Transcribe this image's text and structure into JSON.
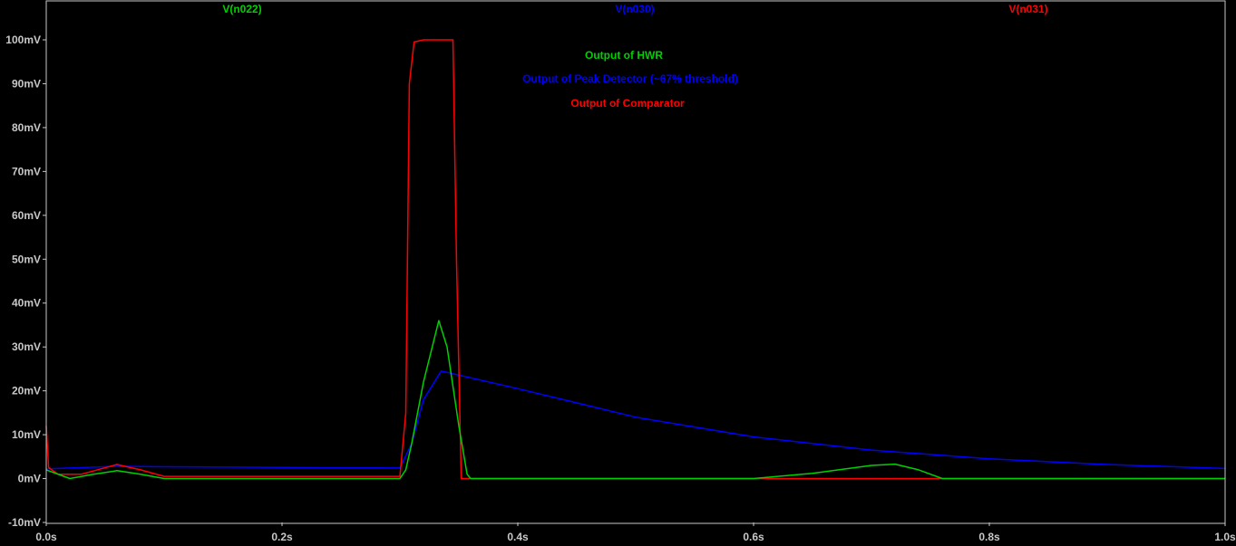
{
  "chart_data": {
    "type": "line",
    "title": "",
    "xlabel": "",
    "ylabel": "",
    "xlim": [
      0.0,
      1.0
    ],
    "ylim": [
      -10,
      100
    ],
    "x_unit": "s",
    "y_unit": "mV",
    "grid": false,
    "x_ticks": [
      "0.0s",
      "0.2s",
      "0.4s",
      "0.6s",
      "0.8s",
      "1.0s"
    ],
    "y_ticks": [
      "100mV",
      "90mV",
      "80mV",
      "70mV",
      "60mV",
      "50mV",
      "40mV",
      "30mV",
      "20mV",
      "10mV",
      "0mV",
      "-10mV"
    ],
    "series": [
      {
        "name": "V(n022)",
        "color": "#00d000",
        "x": [
          0.0,
          0.02,
          0.04,
          0.06,
          0.08,
          0.1,
          0.3,
          0.305,
          0.31,
          0.32,
          0.333,
          0.34,
          0.35,
          0.357,
          0.36,
          0.6,
          0.65,
          0.7,
          0.72,
          0.74,
          0.76,
          1.0
        ],
        "values": [
          2.0,
          0.0,
          1.0,
          1.8,
          1.0,
          0.0,
          0.0,
          2.0,
          8.0,
          22.0,
          36.0,
          30.0,
          12.0,
          1.0,
          0.0,
          0.0,
          1.2,
          3.0,
          3.3,
          2.0,
          0.0,
          0.0
        ]
      },
      {
        "name": "V(n030)",
        "color": "#0000ff",
        "x": [
          0.0,
          0.02,
          0.06,
          0.1,
          0.3,
          0.31,
          0.32,
          0.335,
          0.4,
          0.5,
          0.6,
          0.7,
          0.8,
          0.9,
          1.0
        ],
        "values": [
          2.2,
          2.4,
          2.8,
          2.7,
          2.4,
          8.0,
          18.0,
          24.5,
          20.5,
          14.0,
          9.5,
          6.5,
          4.5,
          3.2,
          2.3
        ]
      },
      {
        "name": "V(n031)",
        "color": "#ff0000",
        "x": [
          0.0,
          0.002,
          0.01,
          0.03,
          0.06,
          0.08,
          0.1,
          0.3,
          0.305,
          0.308,
          0.312,
          0.32,
          0.345,
          0.348,
          0.352,
          0.36,
          0.6,
          0.75,
          1.0
        ],
        "values": [
          12.0,
          2.5,
          1.0,
          1.0,
          3.2,
          2.0,
          0.5,
          0.5,
          15.0,
          90.0,
          99.5,
          100.0,
          100.0,
          50.0,
          0.0,
          0.0,
          0.0,
          0.0,
          0.0
        ]
      }
    ],
    "annotations": [
      {
        "text": "Output of HWR",
        "color": "#00d000"
      },
      {
        "text": "Output of Peak Detector (~67% threshold)",
        "color": "#0000ff"
      },
      {
        "text": "Output of Comparator",
        "color": "#ff0000"
      }
    ]
  }
}
